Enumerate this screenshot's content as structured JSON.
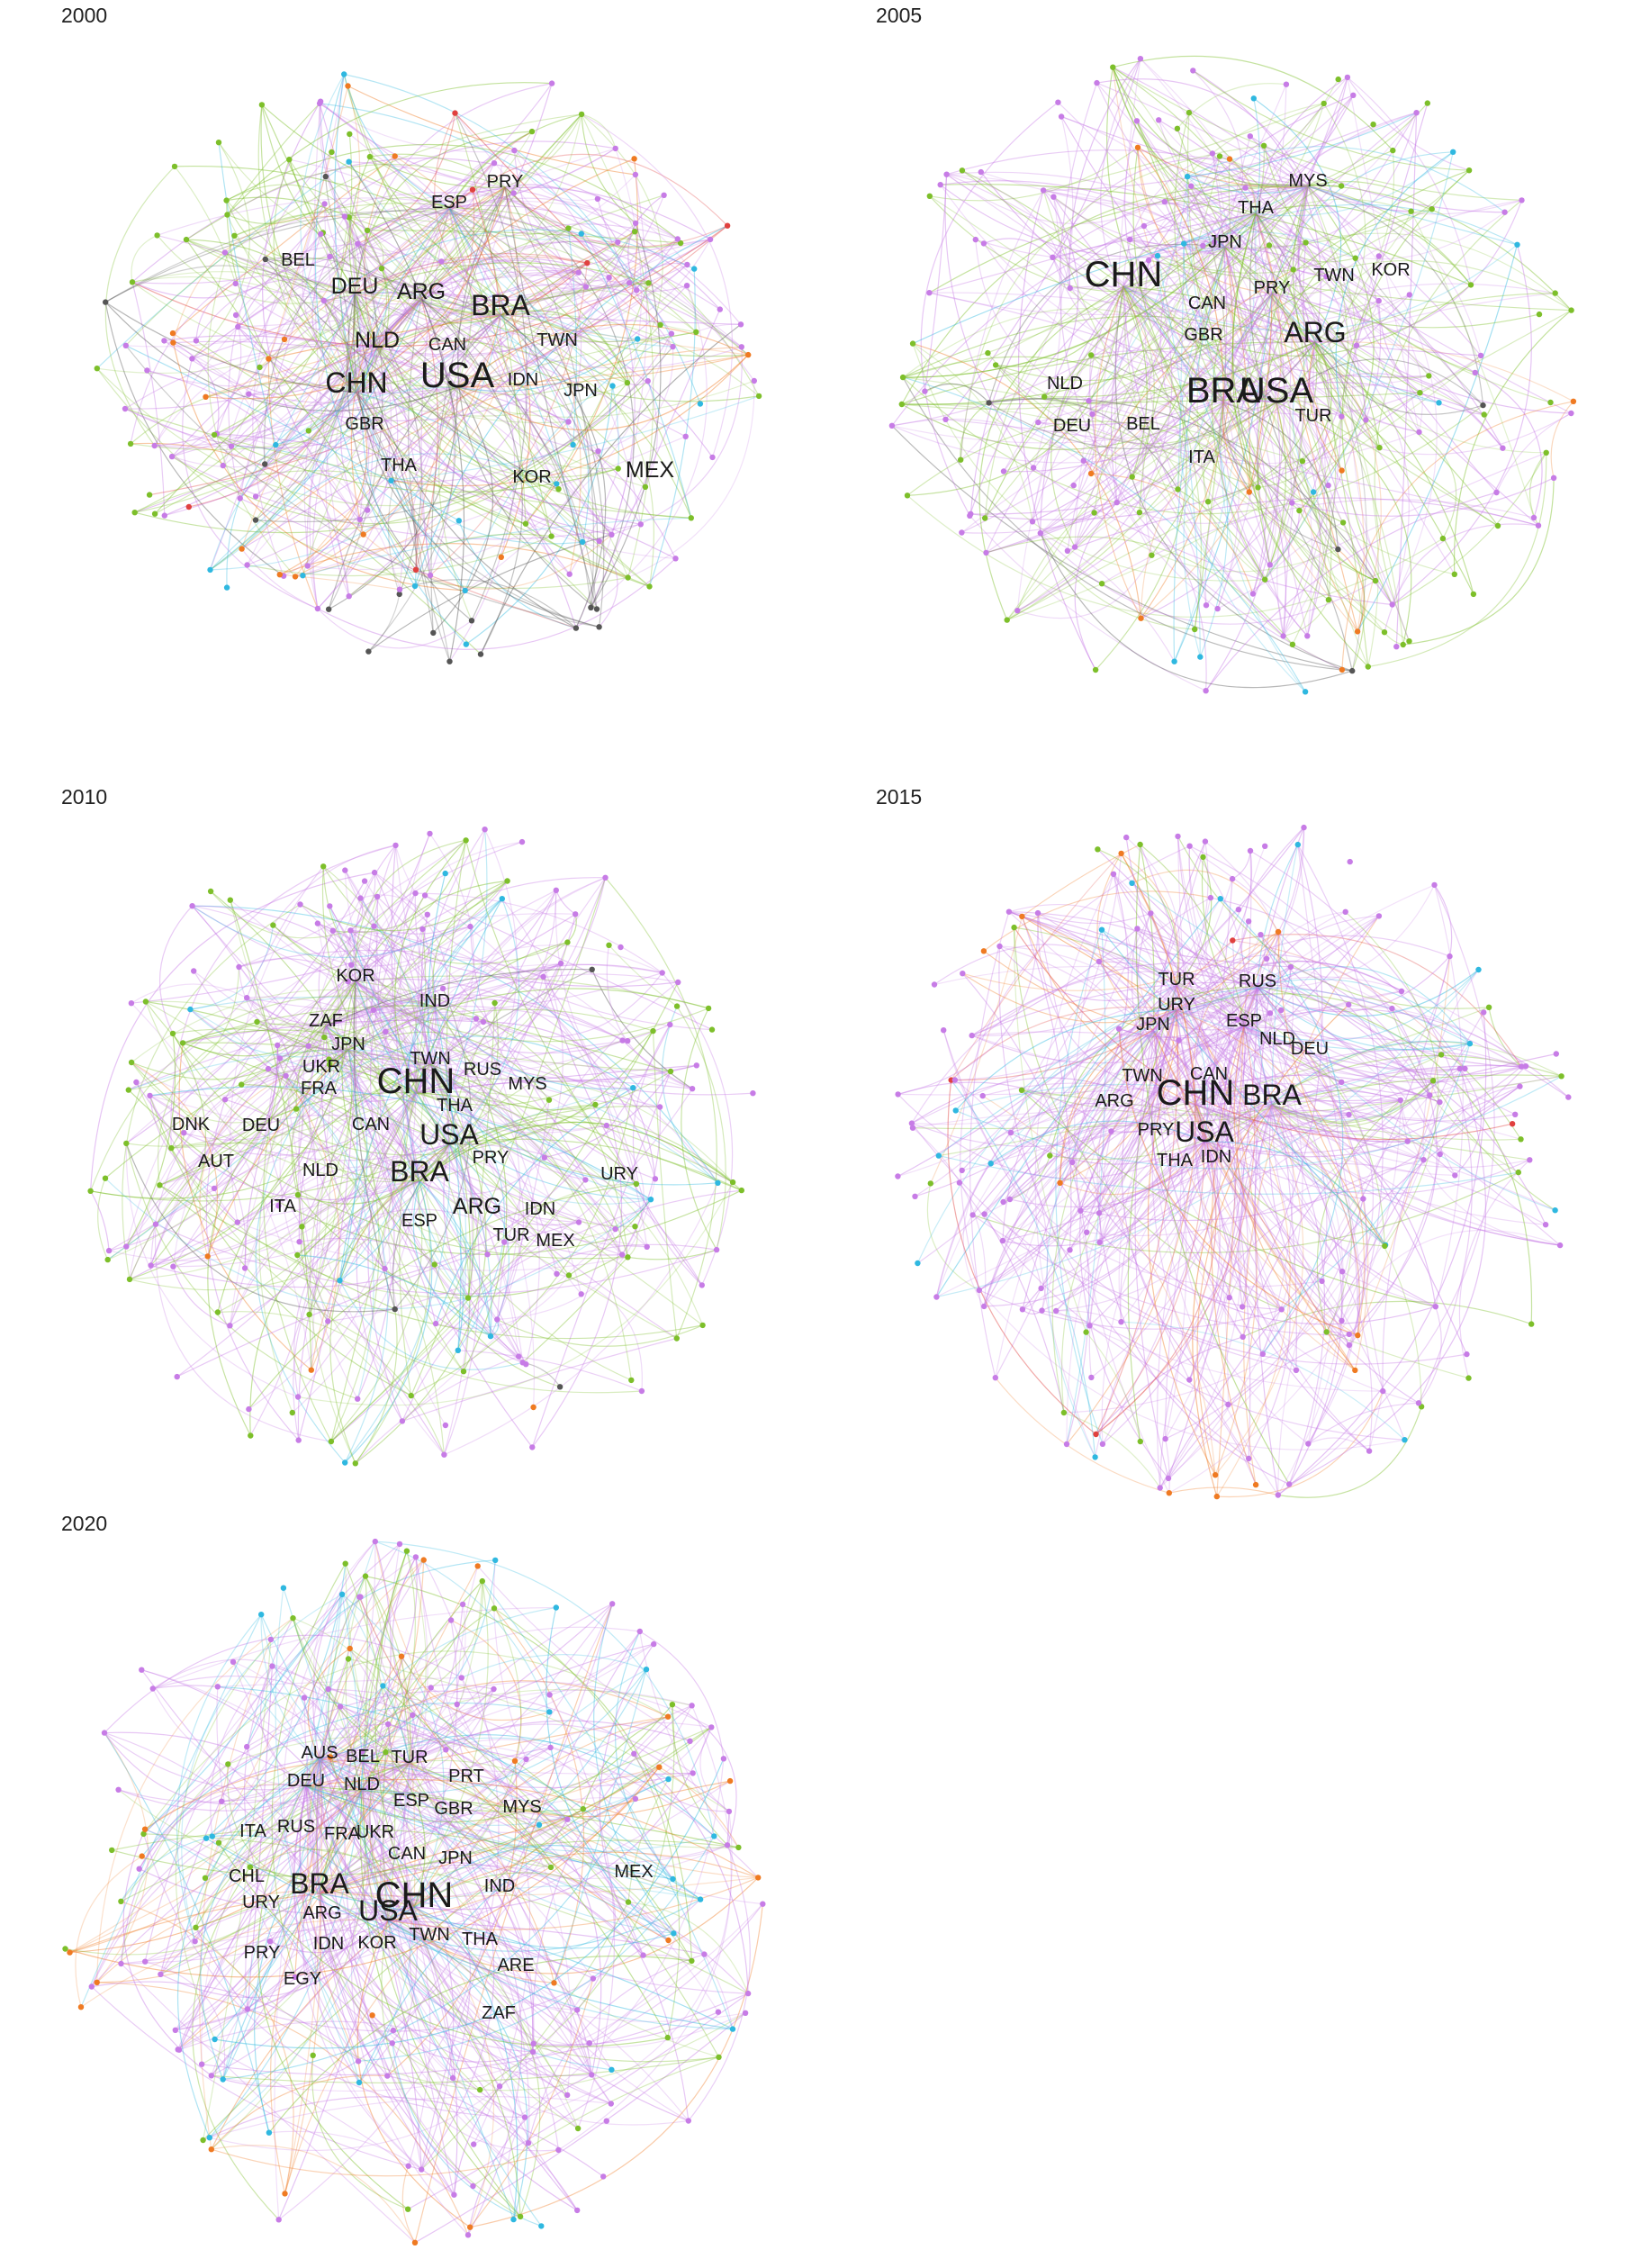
{
  "colors": {
    "purple": "#c77ce6",
    "green": "#7dbf2a",
    "cyan": "#2fb8e0",
    "orange": "#ef7a22",
    "grey": "#555555",
    "red": "#e0413f",
    "teal": "#24a08a",
    "label": "#1a1a1a"
  },
  "panels": [
    {
      "year": "2000",
      "labels": [
        {
          "text": "USA",
          "size": "xl"
        },
        {
          "text": "CHN",
          "size": "l"
        },
        {
          "text": "BRA",
          "size": "l"
        },
        {
          "text": "NLD",
          "size": "m"
        },
        {
          "text": "DEU",
          "size": "m"
        },
        {
          "text": "ARG",
          "size": "m"
        },
        {
          "text": "ESP",
          "size": "s"
        },
        {
          "text": "PRY",
          "size": "s"
        },
        {
          "text": "BEL",
          "size": "s"
        },
        {
          "text": "CAN",
          "size": "s"
        },
        {
          "text": "TWN",
          "size": "s"
        },
        {
          "text": "IDN",
          "size": "s"
        },
        {
          "text": "JPN",
          "size": "s"
        },
        {
          "text": "GBR",
          "size": "s"
        },
        {
          "text": "THA",
          "size": "s"
        },
        {
          "text": "KOR",
          "size": "s"
        },
        {
          "text": "MEX",
          "size": "m"
        }
      ]
    },
    {
      "year": "2005",
      "labels": [
        {
          "text": "CHN",
          "size": "xl"
        },
        {
          "text": "BRA",
          "size": "xl"
        },
        {
          "text": "USA",
          "size": "xl"
        },
        {
          "text": "ARG",
          "size": "l"
        },
        {
          "text": "MYS",
          "size": "s"
        },
        {
          "text": "THA",
          "size": "s"
        },
        {
          "text": "JPN",
          "size": "s"
        },
        {
          "text": "PRY",
          "size": "s"
        },
        {
          "text": "TWN",
          "size": "s"
        },
        {
          "text": "KOR",
          "size": "s"
        },
        {
          "text": "CAN",
          "size": "s"
        },
        {
          "text": "GBR",
          "size": "s"
        },
        {
          "text": "NLD",
          "size": "s"
        },
        {
          "text": "DEU",
          "size": "s"
        },
        {
          "text": "BEL",
          "size": "s"
        },
        {
          "text": "TUR",
          "size": "s"
        },
        {
          "text": "ITA",
          "size": "s"
        }
      ]
    },
    {
      "year": "2010",
      "labels": [
        {
          "text": "CHN",
          "size": "xl"
        },
        {
          "text": "USA",
          "size": "l"
        },
        {
          "text": "BRA",
          "size": "l"
        },
        {
          "text": "KOR",
          "size": "s"
        },
        {
          "text": "IND",
          "size": "s"
        },
        {
          "text": "ZAF",
          "size": "s"
        },
        {
          "text": "JPN",
          "size": "s"
        },
        {
          "text": "TWN",
          "size": "s"
        },
        {
          "text": "UKR",
          "size": "s"
        },
        {
          "text": "RUS",
          "size": "s"
        },
        {
          "text": "FRA",
          "size": "s"
        },
        {
          "text": "MYS",
          "size": "s"
        },
        {
          "text": "THA",
          "size": "s"
        },
        {
          "text": "DNK",
          "size": "s"
        },
        {
          "text": "DEU",
          "size": "s"
        },
        {
          "text": "CAN",
          "size": "s"
        },
        {
          "text": "AUT",
          "size": "s"
        },
        {
          "text": "NLD",
          "size": "s"
        },
        {
          "text": "PRY",
          "size": "s"
        },
        {
          "text": "URY",
          "size": "s"
        },
        {
          "text": "ITA",
          "size": "s"
        },
        {
          "text": "ARG",
          "size": "m"
        },
        {
          "text": "IDN",
          "size": "s"
        },
        {
          "text": "ESP",
          "size": "s"
        },
        {
          "text": "TUR",
          "size": "s"
        },
        {
          "text": "MEX",
          "size": "s"
        }
      ]
    },
    {
      "year": "2015",
      "labels": [
        {
          "text": "CHN",
          "size": "xl"
        },
        {
          "text": "BRA",
          "size": "l"
        },
        {
          "text": "USA",
          "size": "l"
        },
        {
          "text": "TUR",
          "size": "s"
        },
        {
          "text": "RUS",
          "size": "s"
        },
        {
          "text": "URY",
          "size": "s"
        },
        {
          "text": "ESP",
          "size": "s"
        },
        {
          "text": "JPN",
          "size": "s"
        },
        {
          "text": "DEU",
          "size": "s"
        },
        {
          "text": "NLD",
          "size": "s"
        },
        {
          "text": "TWN",
          "size": "s"
        },
        {
          "text": "CAN",
          "size": "s"
        },
        {
          "text": "ARG",
          "size": "s"
        },
        {
          "text": "PRY",
          "size": "s"
        },
        {
          "text": "IDN",
          "size": "s"
        },
        {
          "text": "THA",
          "size": "s"
        }
      ]
    },
    {
      "year": "2020",
      "labels": [
        {
          "text": "CHN",
          "size": "xl"
        },
        {
          "text": "BRA",
          "size": "l"
        },
        {
          "text": "USA",
          "size": "l"
        },
        {
          "text": "AUS",
          "size": "s"
        },
        {
          "text": "BEL",
          "size": "s"
        },
        {
          "text": "TUR",
          "size": "s"
        },
        {
          "text": "DEU",
          "size": "s"
        },
        {
          "text": "NLD",
          "size": "s"
        },
        {
          "text": "PRT",
          "size": "s"
        },
        {
          "text": "ESP",
          "size": "s"
        },
        {
          "text": "GBR",
          "size": "s"
        },
        {
          "text": "MYS",
          "size": "s"
        },
        {
          "text": "ITA",
          "size": "s"
        },
        {
          "text": "RUS",
          "size": "s"
        },
        {
          "text": "FRA",
          "size": "s"
        },
        {
          "text": "UKR",
          "size": "s"
        },
        {
          "text": "CAN",
          "size": "s"
        },
        {
          "text": "JPN",
          "size": "s"
        },
        {
          "text": "MEX",
          "size": "s"
        },
        {
          "text": "CHL",
          "size": "s"
        },
        {
          "text": "IND",
          "size": "s"
        },
        {
          "text": "URY",
          "size": "s"
        },
        {
          "text": "ARG",
          "size": "s"
        },
        {
          "text": "TWN",
          "size": "s"
        },
        {
          "text": "PRY",
          "size": "s"
        },
        {
          "text": "IDN",
          "size": "s"
        },
        {
          "text": "KOR",
          "size": "s"
        },
        {
          "text": "THA",
          "size": "s"
        },
        {
          "text": "ARE",
          "size": "s"
        },
        {
          "text": "EGY",
          "size": "s"
        },
        {
          "text": "ZAF",
          "size": "s"
        }
      ]
    }
  ]
}
